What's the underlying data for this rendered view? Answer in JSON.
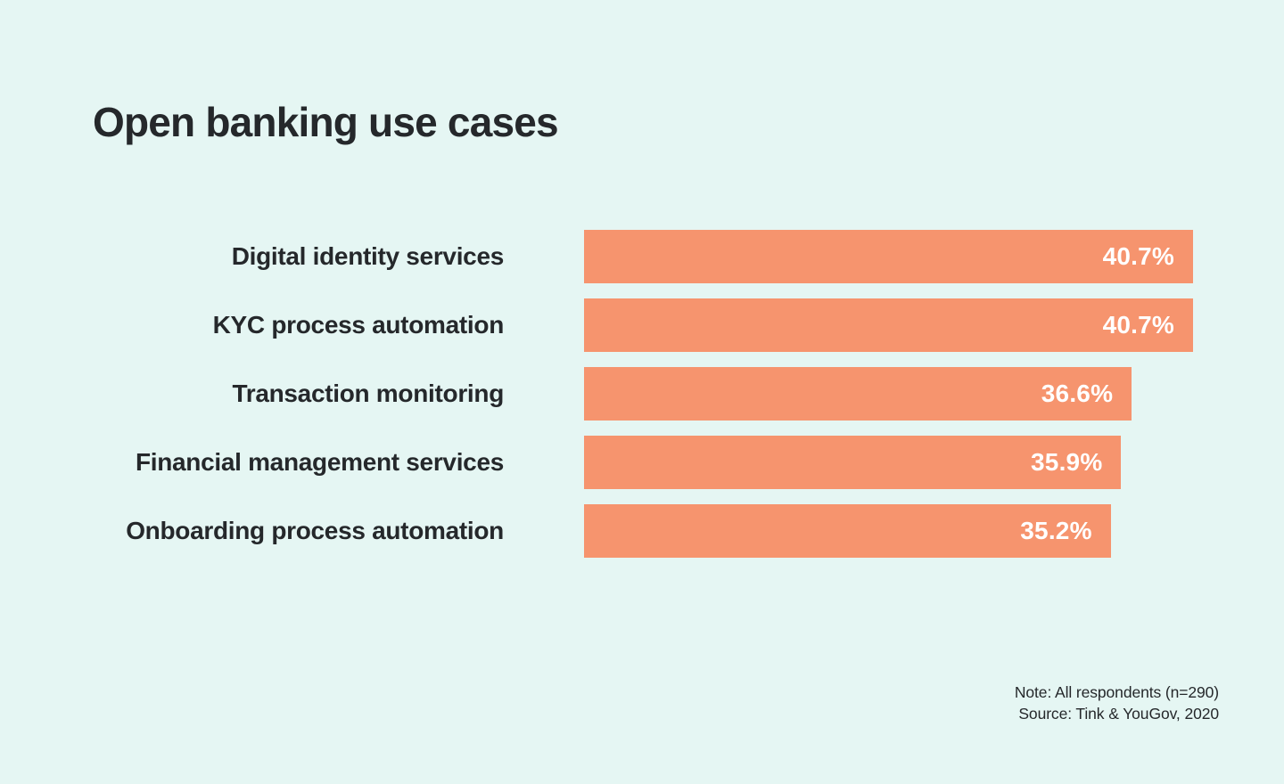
{
  "page": {
    "background_color": "#e5f6f3",
    "text_color": "#25282b"
  },
  "chart_data": {
    "type": "bar",
    "orientation": "horizontal",
    "title": "Open banking use cases",
    "categories": [
      "Digital identity services",
      "KYC process automation",
      "Transaction monitoring",
      "Financial management services",
      "Onboarding process automation"
    ],
    "values": [
      40.7,
      40.7,
      36.6,
      35.9,
      35.2
    ],
    "value_labels": [
      "40.7%",
      "40.7%",
      "36.6%",
      "35.9%",
      "35.2%"
    ],
    "xlabel": "",
    "ylabel": "",
    "xlim": [
      0,
      40.7
    ],
    "grid": false,
    "legend": "none",
    "bar_color": "#f6946e",
    "value_label_color": "#ffffff"
  },
  "footnote": {
    "note": "Note: All respondents (n=290)",
    "source": "Source: Tink & YouGov, 2020"
  }
}
